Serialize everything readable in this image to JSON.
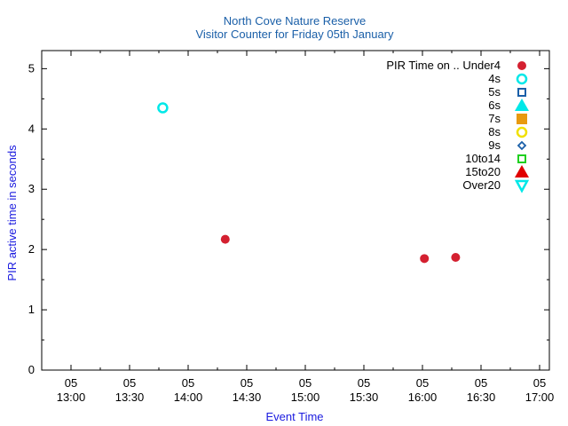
{
  "chart_data": {
    "type": "scatter",
    "title": "North Cove Nature Reserve",
    "subtitle": "Visitor Counter for Friday 05th January",
    "xlabel": "Event Time",
    "ylabel": "PIR active time in seconds",
    "ylim": [
      0,
      5.3
    ],
    "yticks": [
      0,
      1,
      2,
      3,
      4,
      5
    ],
    "xlim": [
      "12:45",
      "17:05"
    ],
    "xticks": [
      {
        "value": "13:00",
        "date": "05",
        "time": "13:00"
      },
      {
        "value": "13:30",
        "date": "05",
        "time": "13:30"
      },
      {
        "value": "14:00",
        "date": "05",
        "time": "14:00"
      },
      {
        "value": "14:30",
        "date": "05",
        "time": "14:30"
      },
      {
        "value": "15:00",
        "date": "05",
        "time": "15:00"
      },
      {
        "value": "15:30",
        "date": "05",
        "time": "15:30"
      },
      {
        "value": "16:00",
        "date": "05",
        "time": "16:00"
      },
      {
        "value": "16:30",
        "date": "05",
        "time": "16:30"
      },
      {
        "value": "17:00",
        "date": "05",
        "time": "17:00"
      }
    ],
    "grid": false,
    "legend_position": "top-right",
    "series": [
      {
        "name": "PIR Time on .. Under4",
        "marker": "filled-circle",
        "color": "#d42030",
        "points": [
          {
            "x": "14:19",
            "y": 2.17
          },
          {
            "x": "16:01",
            "y": 1.85
          },
          {
            "x": "16:17",
            "y": 1.87
          }
        ]
      },
      {
        "name": "4s",
        "marker": "open-circle",
        "color": "#00e8e8",
        "points": [
          {
            "x": "13:47",
            "y": 4.35
          }
        ]
      },
      {
        "name": "5s",
        "marker": "open-square",
        "color": "#1a5fa8",
        "points": []
      },
      {
        "name": "6s",
        "marker": "filled-triangle",
        "color": "#00e8e8",
        "points": []
      },
      {
        "name": "7s",
        "marker": "filled-square",
        "color": "#e89a10",
        "points": []
      },
      {
        "name": "8s",
        "marker": "open-circle",
        "color": "#f0e000",
        "points": []
      },
      {
        "name": "9s",
        "marker": "open-diamond",
        "color": "#1a5fa8",
        "points": []
      },
      {
        "name": "10to14",
        "marker": "open-square",
        "color": "#20d020",
        "points": []
      },
      {
        "name": "15to20",
        "marker": "filled-triangle",
        "color": "#e00000",
        "points": []
      },
      {
        "name": "Over20",
        "marker": "open-triangle-down",
        "color": "#00e8e8",
        "points": []
      }
    ]
  }
}
